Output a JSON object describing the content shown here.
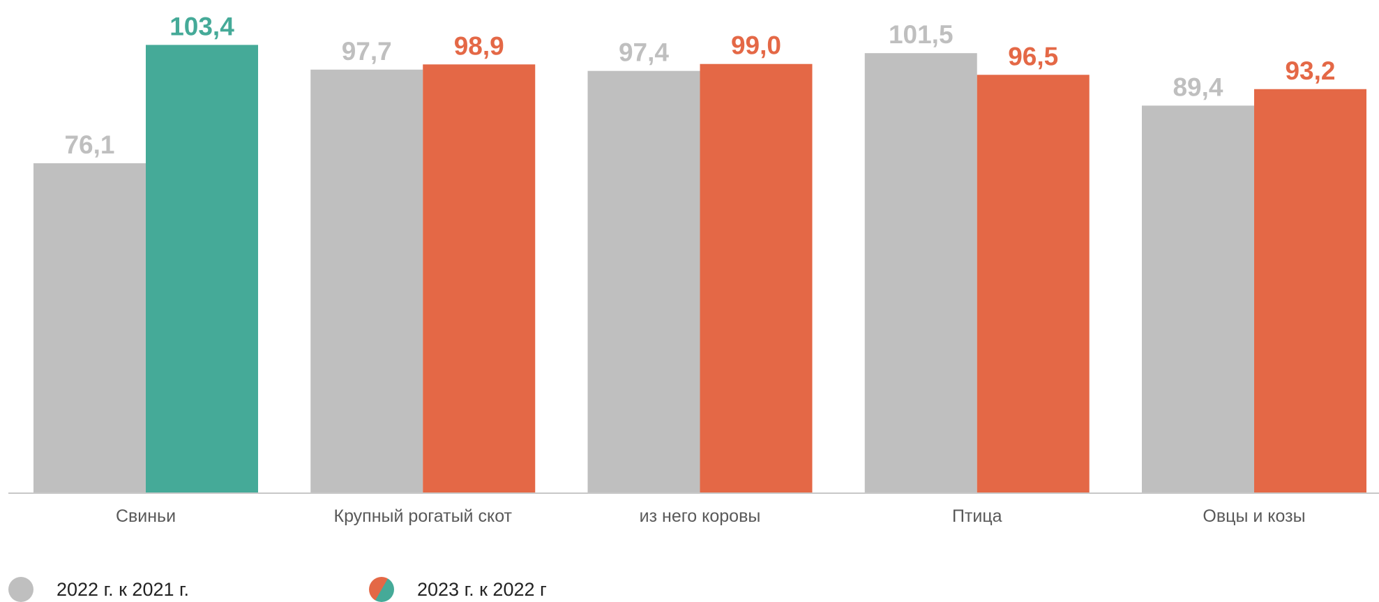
{
  "chart_data": {
    "type": "bar",
    "categories": [
      "Свиньи",
      "Крупный рогатый скот",
      "из него коровы",
      "Птица",
      "Овцы и козы"
    ],
    "series": [
      {
        "name": "2022 г. к 2021 г.",
        "values": [
          76.1,
          97.7,
          97.4,
          101.5,
          89.4
        ],
        "value_labels": [
          "76,1",
          "97,7",
          "97,4",
          "101,5",
          "89,4"
        ],
        "color": "#bfbfbf",
        "label_color": "#bfbfbf"
      },
      {
        "name": "2023 г. к 2022 г",
        "values": [
          103.4,
          98.9,
          99.0,
          96.5,
          93.2
        ],
        "value_labels": [
          "103,4",
          "98,9",
          "99,0",
          "96,5",
          "93,2"
        ],
        "color_above_100": "#45aa98",
        "color_below_100": "#e46846"
      }
    ],
    "ylim": [
      0,
      104
    ],
    "grid": false,
    "legend_placement": "bottom-left"
  }
}
